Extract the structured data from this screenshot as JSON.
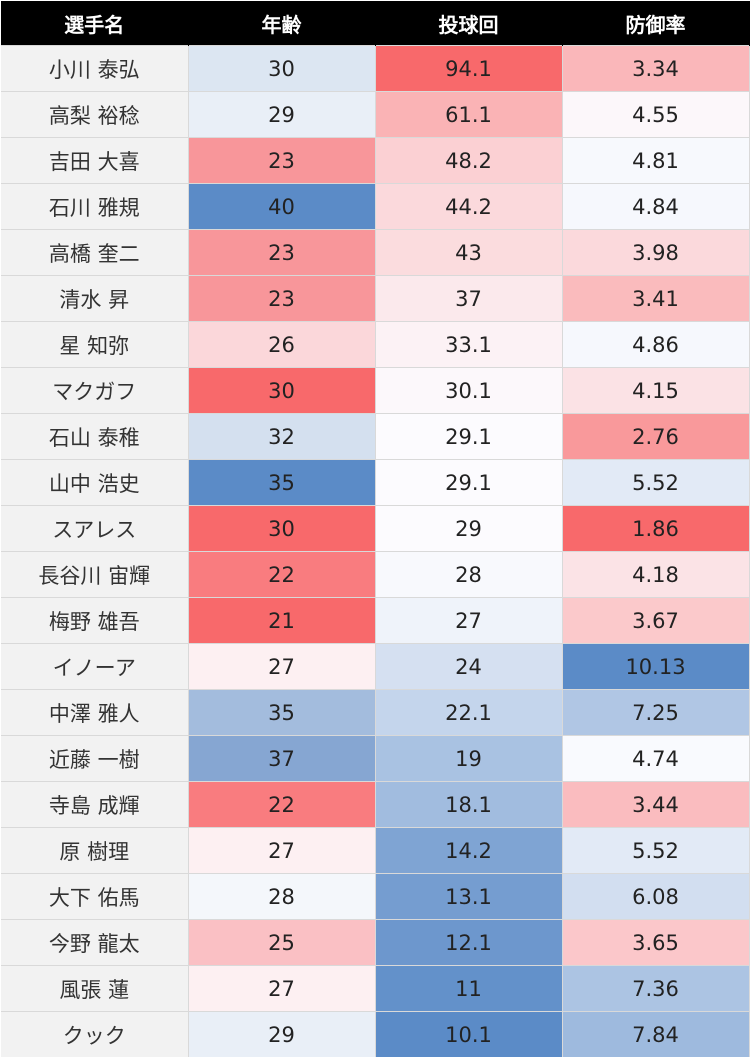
{
  "chart_data": {
    "type": "table",
    "columns": [
      "選手名",
      "年齢",
      "投球回",
      "防御率"
    ],
    "rows": [
      {
        "name": "小川 泰弘",
        "age": "30",
        "ip": "94.1",
        "era": "3.34"
      },
      {
        "name": "高梨 裕稔",
        "age": "29",
        "ip": "61.1",
        "era": "4.55"
      },
      {
        "name": "吉田 大喜",
        "age": "23",
        "ip": "48.2",
        "era": "4.81"
      },
      {
        "name": "石川 雅規",
        "age": "40",
        "ip": "44.2",
        "era": "4.84"
      },
      {
        "name": "高橋 奎二",
        "age": "23",
        "ip": "43",
        "era": "3.98"
      },
      {
        "name": "清水 昇",
        "age": "23",
        "ip": "37",
        "era": "3.41"
      },
      {
        "name": "星 知弥",
        "age": "26",
        "ip": "33.1",
        "era": "4.86"
      },
      {
        "name": "マクガフ",
        "age": "30",
        "ip": "30.1",
        "era": "4.15"
      },
      {
        "name": "石山 泰稚",
        "age": "32",
        "ip": "29.1",
        "era": "2.76"
      },
      {
        "name": "山中 浩史",
        "age": "35",
        "ip": "29.1",
        "era": "5.52"
      },
      {
        "name": "スアレス",
        "age": "30",
        "ip": "29",
        "era": "1.86"
      },
      {
        "name": "長谷川 宙輝",
        "age": "22",
        "ip": "28",
        "era": "4.18"
      },
      {
        "name": "梅野 雄吾",
        "age": "21",
        "ip": "27",
        "era": "3.67"
      },
      {
        "name": "イノーア",
        "age": "27",
        "ip": "24",
        "era": "10.13"
      },
      {
        "name": "中澤 雅人",
        "age": "35",
        "ip": "22.1",
        "era": "7.25"
      },
      {
        "name": "近藤 一樹",
        "age": "37",
        "ip": "19",
        "era": "4.74"
      },
      {
        "name": "寺島 成輝",
        "age": "22",
        "ip": "18.1",
        "era": "3.44"
      },
      {
        "name": "原 樹理",
        "age": "27",
        "ip": "14.2",
        "era": "5.52"
      },
      {
        "name": "大下 佑馬",
        "age": "28",
        "ip": "13.1",
        "era": "6.08"
      },
      {
        "name": "今野 龍太",
        "age": "25",
        "ip": "12.1",
        "era": "3.65"
      },
      {
        "name": "風張 蓮",
        "age": "27",
        "ip": "11",
        "era": "7.36"
      },
      {
        "name": "クック",
        "age": "29",
        "ip": "10.1",
        "era": "7.84"
      }
    ],
    "colors": {
      "ip": {
        "low": "#5b8bc7",
        "mid": "#fcfcff",
        "high": "#f8696b"
      },
      "era": {
        "low": "#f8696b",
        "mid": "#fcfcff",
        "high": "#5b8bc7"
      }
    },
    "age_colors": [
      "#dce6f2",
      "#e9eff7",
      "#f8969a",
      "#5b8bc7",
      "#f8969a",
      "#f8969a",
      "#fbd7da",
      "#f8696b",
      "#d4e0ef",
      "#5b8bc7",
      "#f8696b",
      "#f97c7f",
      "#f8696b",
      "#fdf0f2",
      "#a3bcdd",
      "#86a6d2",
      "#f97c7f",
      "#fdf0f2",
      "#f4f7fb",
      "#fac0c4",
      "#fdf0f2",
      "#e9eff7"
    ]
  }
}
